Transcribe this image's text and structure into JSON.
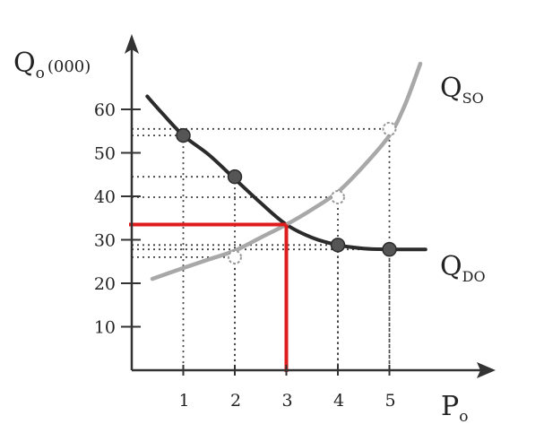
{
  "chart_data": {
    "type": "line",
    "ylabel_main": "Q",
    "ylabel_sub": "o",
    "ylabel_suffix": "(000)",
    "xlabel_main": "P",
    "xlabel_sub": "o",
    "xlim": [
      0,
      6.0
    ],
    "ylim": [
      0,
      70
    ],
    "x_ticks": [
      1,
      2,
      3,
      4,
      5
    ],
    "y_ticks": [
      10,
      20,
      30,
      40,
      50,
      60
    ],
    "grid": false,
    "series": [
      {
        "name_main": "Q",
        "name_sub": "DO",
        "role": "demand",
        "color": "#2b2b2b",
        "curve": [
          [
            0.3,
            63
          ],
          [
            0.6,
            59
          ],
          [
            1.0,
            54
          ],
          [
            1.5,
            49.5
          ],
          [
            2.0,
            44
          ],
          [
            2.5,
            38.5
          ],
          [
            3.0,
            33.5
          ],
          [
            3.5,
            30.5
          ],
          [
            4.0,
            28.8
          ],
          [
            4.5,
            28.0
          ],
          [
            5.0,
            27.8
          ],
          [
            5.7,
            27.8
          ]
        ],
        "points": [
          [
            1,
            54
          ],
          [
            2,
            44.5
          ],
          [
            4,
            28.8
          ],
          [
            5,
            27.8
          ]
        ]
      },
      {
        "name_main": "Q",
        "name_sub": "SO",
        "role": "supply",
        "color": "#a8a8a8",
        "curve": [
          [
            0.4,
            21
          ],
          [
            1.0,
            23.5
          ],
          [
            1.5,
            25.5
          ],
          [
            2.0,
            27.5
          ],
          [
            2.5,
            30.5
          ],
          [
            3.0,
            33.5
          ],
          [
            3.5,
            37
          ],
          [
            4.0,
            41
          ],
          [
            4.5,
            47
          ],
          [
            5.0,
            54
          ],
          [
            5.3,
            61
          ],
          [
            5.6,
            70.5
          ]
        ],
        "points": [
          [
            2,
            26
          ],
          [
            4,
            39.8
          ],
          [
            5,
            55.5
          ]
        ]
      }
    ],
    "equilibrium": {
      "x": 3,
      "y": 33.5,
      "color": "#e01b1b"
    }
  }
}
